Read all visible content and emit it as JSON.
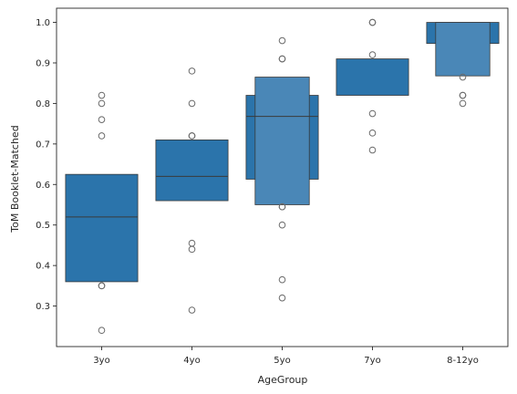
{
  "chart_data": {
    "type": "boxen",
    "title": "",
    "xlabel": "AgeGroup",
    "ylabel": "ToM Booklet-Matched",
    "categories": [
      "3yo",
      "4yo",
      "5yo",
      "7yo",
      "8-12yo"
    ],
    "ylim": [
      0.2,
      1.035
    ],
    "yticks": [
      0.3,
      0.4,
      0.5,
      0.6,
      0.7,
      0.8,
      0.9,
      1.0
    ],
    "ytick_labels": [
      "0.3",
      "0.4",
      "0.5",
      "0.6",
      "0.7",
      "0.8",
      "0.9",
      "1.0"
    ],
    "grid": false,
    "colors": {
      "box": "#2b74ab",
      "box_inner": "#4a87b7",
      "edge": "#3a3a3a",
      "outlier_edge": "#6a6a6a"
    },
    "groups": [
      {
        "category": "3yo",
        "median": 0.52,
        "boxes": [
          {
            "low": 0.36,
            "high": 0.625
          }
        ],
        "outliers": [
          0.82,
          0.8,
          0.76,
          0.72,
          0.35,
          0.35,
          0.24
        ]
      },
      {
        "category": "4yo",
        "median": 0.62,
        "boxes": [
          {
            "low": 0.56,
            "high": 0.71
          }
        ],
        "outliers": [
          0.88,
          0.8,
          0.72,
          0.72,
          0.455,
          0.44,
          0.29
        ]
      },
      {
        "category": "5yo",
        "median": 0.768,
        "boxes": [
          {
            "low": 0.613,
            "high": 0.82
          },
          {
            "low": 0.55,
            "high": 0.865
          }
        ],
        "outliers": [
          0.955,
          0.91,
          0.91,
          0.545,
          0.545,
          0.5,
          0.365,
          0.32
        ]
      },
      {
        "category": "7yo",
        "median": null,
        "boxes": [
          {
            "low": 0.82,
            "high": 0.91
          }
        ],
        "outliers": [
          1.0,
          1.0,
          0.92,
          0.775,
          0.727,
          0.685
        ]
      },
      {
        "category": "8-12yo",
        "median": null,
        "boxes": [
          {
            "low": 0.948,
            "high": 1.0
          },
          {
            "low": 0.868,
            "high": 1.0
          }
        ],
        "outliers": [
          0.865,
          0.82,
          0.82,
          0.8
        ]
      }
    ]
  }
}
